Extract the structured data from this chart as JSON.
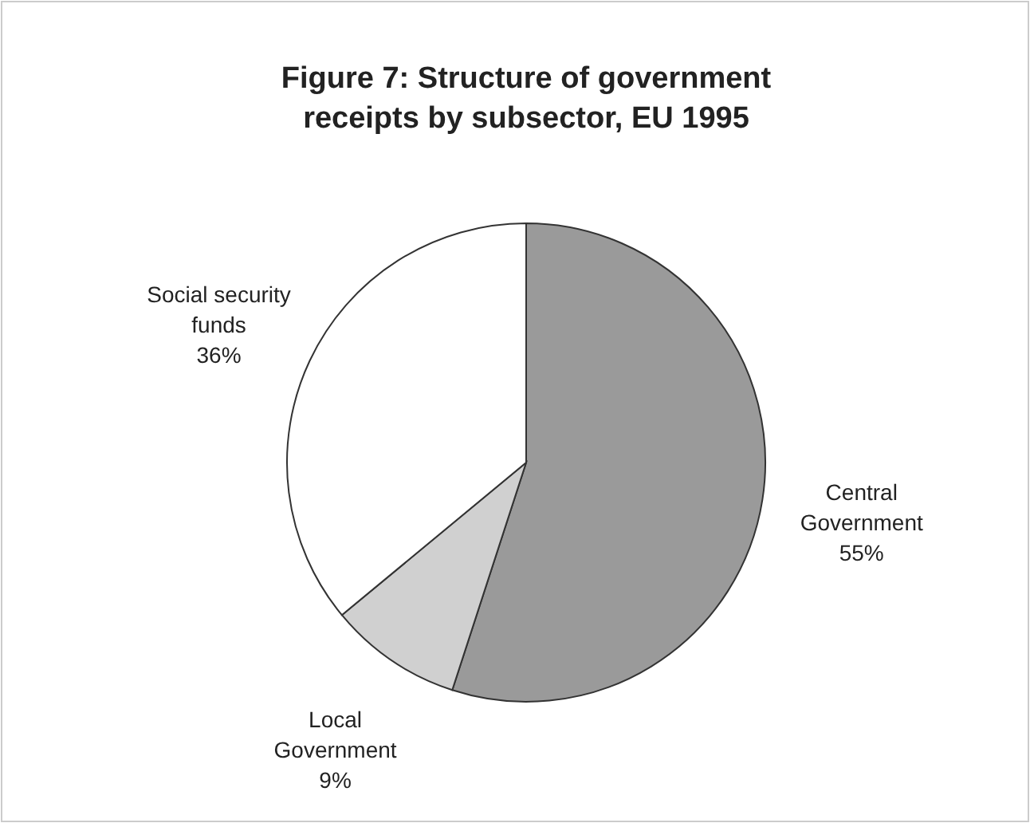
{
  "chart_data": {
    "type": "pie",
    "title": "Figure 7: Structure of government receipts by subsector, EU 1995",
    "categories": [
      "Central Government",
      "Local Government",
      "Social security funds"
    ],
    "values": [
      55,
      9,
      36
    ],
    "colors": [
      "#9a9a9a",
      "#d0d0d0",
      "#ffffff"
    ],
    "value_labels": [
      "55%",
      "9%",
      "36%"
    ]
  }
}
